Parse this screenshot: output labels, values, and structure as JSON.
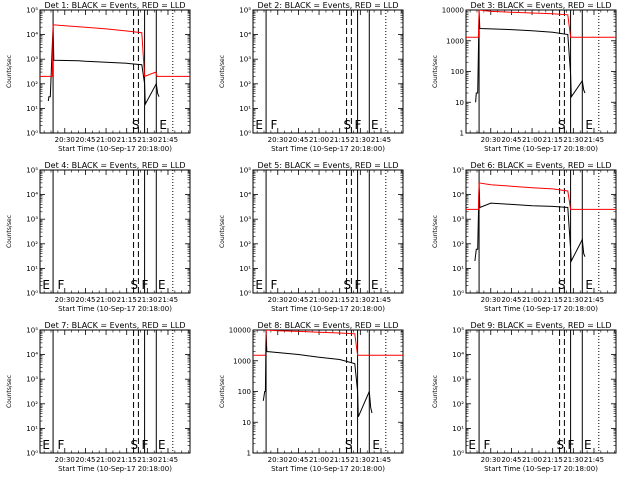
{
  "figure": {
    "x_tick_labels": [
      "20:30",
      "20:45",
      "21:00",
      "21:15",
      "21:30",
      "21:45"
    ],
    "x_ticks_min": [
      30,
      45,
      60,
      75,
      90,
      105
    ],
    "x_range_min": [
      12,
      121
    ],
    "xlabel": "Start Time (10-Sep-17 20:18:00)",
    "ylabel": "Counts/sec",
    "colors": {
      "events": "#000000",
      "lld": "#ff0000",
      "axes": "#000000"
    }
  },
  "chart_data": [
    {
      "type": "line",
      "title": "Det 1: BLACK = Events, RED = LLD",
      "yscale": "log",
      "ylim": [
        1,
        100000
      ],
      "ytick_style": "exp",
      "ytick_values": [
        1,
        10,
        100,
        1000,
        10000,
        100000
      ],
      "ytick_labels": [
        "10⁰",
        "10¹",
        "10²",
        "10³",
        "10⁴",
        "10⁵"
      ],
      "markers": [
        {
          "label": "S",
          "x": 78
        },
        {
          "label": "E",
          "x": 98
        }
      ],
      "series": [
        {
          "name": "Events",
          "color": "#000000",
          "points": [
            [
              18,
              20
            ],
            [
              18.5,
              30
            ],
            [
              19.5,
              30
            ],
            [
              21.5,
              25000
            ],
            [
              22,
              900
            ],
            [
              40,
              870
            ],
            [
              45,
              820
            ],
            [
              60,
              750
            ],
            [
              75,
              680
            ],
            [
              86,
              600
            ],
            [
              88,
              100
            ],
            [
              88.5,
              15
            ],
            [
              96.5,
              100
            ],
            [
              97.5,
              40
            ],
            [
              98.5,
              30
            ]
          ]
        },
        {
          "name": "LLD",
          "color": "#ff0000",
          "points": [
            [
              12,
              200
            ],
            [
              20,
              200
            ],
            [
              21,
              200
            ],
            [
              21.5,
              25000
            ],
            [
              30,
              23000
            ],
            [
              45,
              20000
            ],
            [
              60,
              17000
            ],
            [
              75,
              14000
            ],
            [
              86,
              12000
            ],
            [
              88,
              200
            ],
            [
              96,
              300
            ],
            [
              97,
              200
            ],
            [
              121,
              200
            ]
          ]
        }
      ]
    },
    {
      "type": "line",
      "title": "Det 2: BLACK = Events, RED = LLD",
      "yscale": "log",
      "ylim": [
        1,
        100000
      ],
      "ytick_style": "exp",
      "ytick_values": [
        1,
        10,
        100,
        1000,
        10000,
        100000
      ],
      "ytick_labels": [
        "10⁰",
        "10¹",
        "10²",
        "10³",
        "10⁴",
        "10⁵"
      ],
      "markers": [
        {
          "label": "E",
          "x": 13
        },
        {
          "label": "F",
          "x": 24
        },
        {
          "label": "S",
          "x": 77
        },
        {
          "label": "F",
          "x": 85
        },
        {
          "label": "E",
          "x": 97
        }
      ],
      "series": []
    },
    {
      "type": "line",
      "title": "Det 3: BLACK = Events, RED = LLD",
      "yscale": "log",
      "ylim": [
        1,
        10000
      ],
      "ytick_style": "plain",
      "ytick_values": [
        1,
        10,
        100,
        1000,
        10000
      ],
      "ytick_labels": [
        "1",
        "10",
        "100",
        "1000",
        "10000"
      ],
      "markers": [
        {
          "label": "S",
          "x": 78
        },
        {
          "label": "E",
          "x": 98
        }
      ],
      "series": [
        {
          "name": "Events",
          "color": "#000000",
          "points": [
            [
              19,
              10
            ],
            [
              19.5,
              20
            ],
            [
              20.5,
              20
            ],
            [
              21.5,
              9000
            ],
            [
              22,
              2500
            ],
            [
              45,
              2300
            ],
            [
              60,
              2100
            ],
            [
              75,
              1900
            ],
            [
              86,
              1600
            ],
            [
              88,
              80
            ],
            [
              88.5,
              15
            ],
            [
              96.5,
              50
            ],
            [
              97.5,
              25
            ],
            [
              98.5,
              20
            ]
          ]
        },
        {
          "name": "LLD",
          "color": "#ff0000",
          "points": [
            [
              12,
              1300
            ],
            [
              20,
              1300
            ],
            [
              21,
              1300
            ],
            [
              21.5,
              10000
            ],
            [
              30,
              9000
            ],
            [
              45,
              8500
            ],
            [
              60,
              8000
            ],
            [
              75,
              7500
            ],
            [
              86,
              7000
            ],
            [
              88,
              1300
            ],
            [
              96,
              1300
            ],
            [
              97,
              1300
            ],
            [
              121,
              1300
            ]
          ]
        }
      ]
    },
    {
      "type": "line",
      "title": "Det 4: BLACK = Events, RED = LLD",
      "yscale": "log",
      "ylim": [
        1,
        100000
      ],
      "ytick_style": "exp",
      "ytick_values": [
        1,
        10,
        100,
        1000,
        10000,
        100000
      ],
      "ytick_labels": [
        "10⁰",
        "10¹",
        "10²",
        "10³",
        "10⁴",
        "10⁵"
      ],
      "markers": [
        {
          "label": "E",
          "x": 13
        },
        {
          "label": "F",
          "x": 24
        },
        {
          "label": "S",
          "x": 77
        },
        {
          "label": "F",
          "x": 85
        },
        {
          "label": "E",
          "x": 97
        }
      ],
      "series": []
    },
    {
      "type": "line",
      "title": "Det 5: BLACK = Events, RED = LLD",
      "yscale": "log",
      "ylim": [
        1,
        100000
      ],
      "ytick_style": "exp",
      "ytick_values": [
        1,
        10,
        100,
        1000,
        10000,
        100000
      ],
      "ytick_labels": [
        "10⁰",
        "10¹",
        "10²",
        "10³",
        "10⁴",
        "10⁵"
      ],
      "markers": [
        {
          "label": "E",
          "x": 13
        },
        {
          "label": "F",
          "x": 24
        },
        {
          "label": "S",
          "x": 77
        },
        {
          "label": "F",
          "x": 85
        },
        {
          "label": "E",
          "x": 97
        }
      ],
      "series": []
    },
    {
      "type": "line",
      "title": "Det 6: BLACK = Events, RED = LLD",
      "yscale": "log",
      "ylim": [
        1,
        100000
      ],
      "ytick_style": "exp",
      "ytick_values": [
        1,
        10,
        100,
        1000,
        10000,
        100000
      ],
      "ytick_labels": [
        "10⁰",
        "10¹",
        "10²",
        "10³",
        "10⁴",
        "10⁵"
      ],
      "markers": [
        {
          "label": "S",
          "x": 78
        },
        {
          "label": "E",
          "x": 98
        }
      ],
      "series": [
        {
          "name": "Events",
          "color": "#000000",
          "points": [
            [
              18.5,
              20
            ],
            [
              19.5,
              60
            ],
            [
              20.5,
              60
            ],
            [
              21.5,
              30000
            ],
            [
              22,
              3000
            ],
            [
              30,
              4500
            ],
            [
              45,
              4000
            ],
            [
              60,
              3500
            ],
            [
              75,
              3300
            ],
            [
              86,
              3000
            ],
            [
              88,
              60
            ],
            [
              88.5,
              20
            ],
            [
              96.5,
              150
            ],
            [
              97.5,
              40
            ],
            [
              98.5,
              30
            ]
          ]
        },
        {
          "name": "LLD",
          "color": "#ff0000",
          "points": [
            [
              12,
              2500
            ],
            [
              20,
              2500
            ],
            [
              21,
              2500
            ],
            [
              21.5,
              30000
            ],
            [
              30,
              25000
            ],
            [
              45,
              22000
            ],
            [
              60,
              19000
            ],
            [
              75,
              17000
            ],
            [
              86,
              14000
            ],
            [
              88,
              2500
            ],
            [
              96,
              2500
            ],
            [
              97,
              2500
            ],
            [
              121,
              2500
            ]
          ]
        }
      ]
    },
    {
      "type": "line",
      "title": "Det 7: BLACK = Events, RED = LLD",
      "yscale": "log",
      "ylim": [
        1,
        100000
      ],
      "ytick_style": "exp",
      "ytick_values": [
        1,
        10,
        100,
        1000,
        10000,
        100000
      ],
      "ytick_labels": [
        "10⁰",
        "10¹",
        "10²",
        "10³",
        "10⁴",
        "10⁵"
      ],
      "markers": [
        {
          "label": "E",
          "x": 13
        },
        {
          "label": "F",
          "x": 24
        },
        {
          "label": "S",
          "x": 77
        },
        {
          "label": "F",
          "x": 85
        },
        {
          "label": "E",
          "x": 97
        }
      ],
      "series": []
    },
    {
      "type": "line",
      "title": "Det 8: BLACK = Events, RED = LLD",
      "yscale": "log",
      "ylim": [
        1,
        10000
      ],
      "ytick_style": "plain",
      "ytick_values": [
        1,
        10,
        100,
        1000,
        10000
      ],
      "ytick_labels": [
        "1",
        "10",
        "100",
        "1000",
        "10000"
      ],
      "markers": [
        {
          "label": "S",
          "x": 78
        },
        {
          "label": "E",
          "x": 98
        }
      ],
      "series": [
        {
          "name": "Events",
          "color": "#000000",
          "points": [
            [
              19.5,
              50
            ],
            [
              20.5,
              100
            ],
            [
              21,
              100
            ],
            [
              21.5,
              10000
            ],
            [
              22,
              2000
            ],
            [
              45,
              1600
            ],
            [
              60,
              1300
            ],
            [
              75,
              1100
            ],
            [
              86,
              800
            ],
            [
              88,
              100
            ],
            [
              88.5,
              15
            ],
            [
              96.5,
              100
            ],
            [
              97.5,
              30
            ],
            [
              98.5,
              20
            ]
          ]
        },
        {
          "name": "LLD",
          "color": "#ff0000",
          "points": [
            [
              12,
              1500
            ],
            [
              20,
              1500
            ],
            [
              21,
              1500
            ],
            [
              21.5,
              10000
            ],
            [
              30,
              9500
            ],
            [
              45,
              9000
            ],
            [
              60,
              8500
            ],
            [
              75,
              8000
            ],
            [
              86,
              7500
            ],
            [
              88,
              1500
            ],
            [
              96,
              1500
            ],
            [
              97,
              1500
            ],
            [
              121,
              1500
            ]
          ]
        }
      ]
    },
    {
      "type": "line",
      "title": "Det 9: BLACK = Events, RED = LLD",
      "yscale": "log",
      "ylim": [
        1,
        100000
      ],
      "ytick_style": "exp",
      "ytick_values": [
        1,
        10,
        100,
        1000,
        10000,
        100000
      ],
      "ytick_labels": [
        "10⁰",
        "10¹",
        "10²",
        "10³",
        "10⁴",
        "10⁵"
      ],
      "markers": [
        {
          "label": "E",
          "x": 13
        },
        {
          "label": "F",
          "x": 24
        },
        {
          "label": "S",
          "x": 77
        },
        {
          "label": "F",
          "x": 85
        },
        {
          "label": "E",
          "x": 97
        }
      ],
      "series": []
    }
  ]
}
